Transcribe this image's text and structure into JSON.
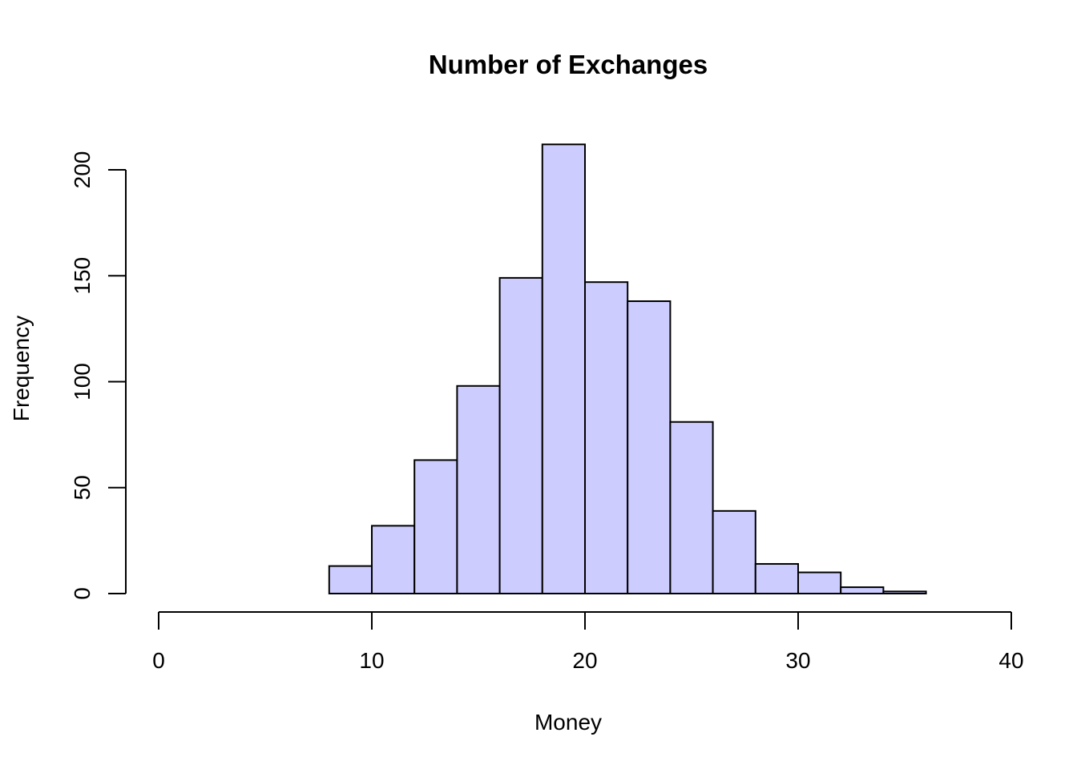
{
  "chart_data": {
    "type": "bar",
    "title": "Number of Exchanges",
    "xlabel": "Money",
    "ylabel": "Frequency",
    "bar_color": "#CCCCFF",
    "border_color": "#000000",
    "xlim": [
      0,
      40
    ],
    "ylim": [
      0,
      212
    ],
    "grid": false,
    "x_ticks": [
      0,
      10,
      20,
      30,
      40
    ],
    "x_tick_labels": [
      "0",
      "10",
      "20",
      "30",
      "40"
    ],
    "y_ticks": [
      0,
      50,
      100,
      150,
      200
    ],
    "y_tick_labels": [
      "0",
      "50",
      "100",
      "150",
      "200"
    ],
    "bins": [
      {
        "x0": 8,
        "x1": 10,
        "count": 13
      },
      {
        "x0": 10,
        "x1": 12,
        "count": 32
      },
      {
        "x0": 12,
        "x1": 14,
        "count": 63
      },
      {
        "x0": 14,
        "x1": 16,
        "count": 98
      },
      {
        "x0": 16,
        "x1": 18,
        "count": 149
      },
      {
        "x0": 18,
        "x1": 20,
        "count": 212
      },
      {
        "x0": 20,
        "x1": 22,
        "count": 147
      },
      {
        "x0": 22,
        "x1": 24,
        "count": 138
      },
      {
        "x0": 24,
        "x1": 26,
        "count": 81
      },
      {
        "x0": 26,
        "x1": 28,
        "count": 39
      },
      {
        "x0": 28,
        "x1": 30,
        "count": 14
      },
      {
        "x0": 30,
        "x1": 32,
        "count": 10
      },
      {
        "x0": 32,
        "x1": 34,
        "count": 3
      },
      {
        "x0": 34,
        "x1": 36,
        "count": 1
      }
    ]
  }
}
